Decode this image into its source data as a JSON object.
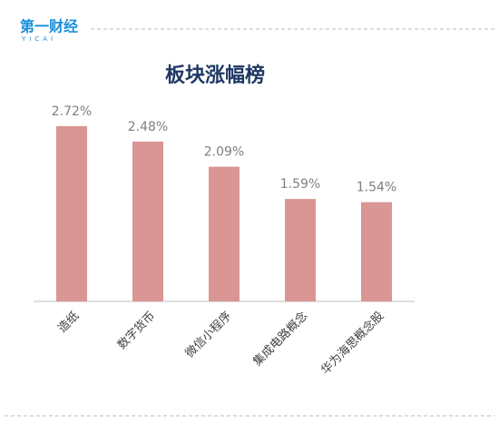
{
  "header": {
    "brand": "第一财经",
    "brand_sub": "YICAI"
  },
  "chart_data": {
    "type": "bar",
    "title": "板块涨幅榜",
    "categories": [
      "造纸",
      "数字货币",
      "微信小程序",
      "集成电路概念",
      "华为海思概念股"
    ],
    "values": [
      2.72,
      2.48,
      2.09,
      1.59,
      1.54
    ],
    "value_labels": [
      "2.72%",
      "2.48%",
      "2.09%",
      "1.59%",
      "1.54%"
    ],
    "color": "#d99694"
  }
}
